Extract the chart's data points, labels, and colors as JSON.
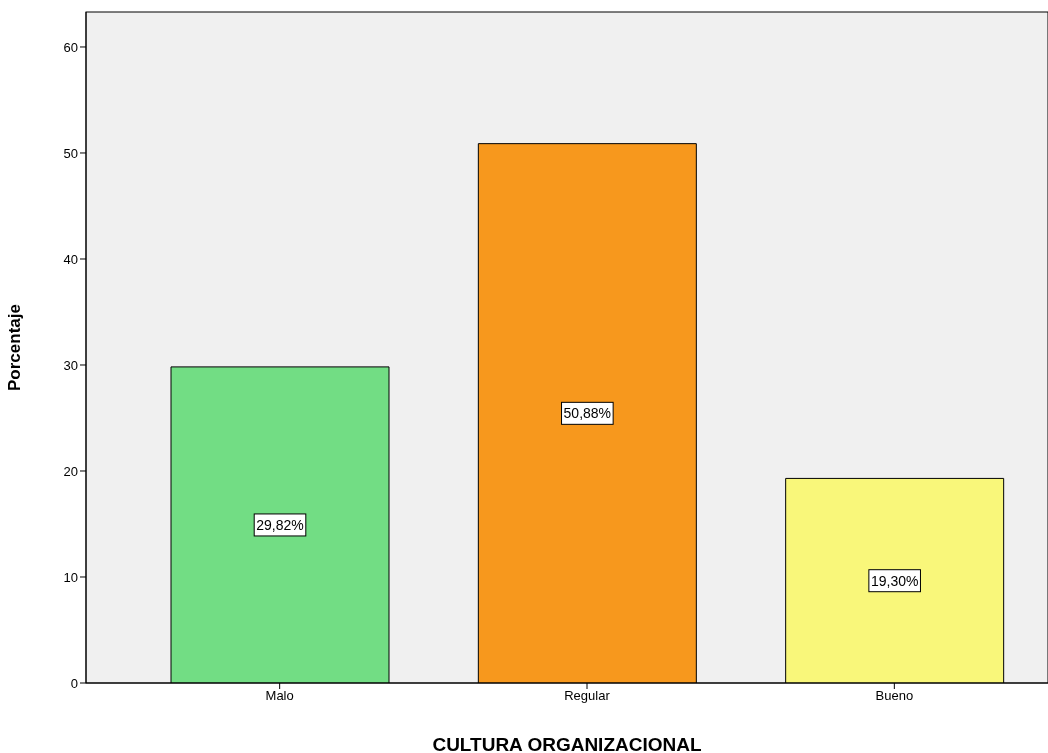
{
  "chart_data": {
    "type": "bar",
    "xlabel": "CULTURA ORGANIZACIONAL",
    "ylabel": "Porcentaje",
    "categories": [
      "Malo",
      "Regular",
      "Bueno"
    ],
    "values": [
      29.82,
      50.88,
      19.3
    ],
    "colors": [
      "#72dd84",
      "#f7981d",
      "#f9f77a"
    ],
    "value_labels": [
      "29,82%",
      "50,88%",
      "19,30%"
    ],
    "ylim": [
      0,
      63.3
    ],
    "yticks": [
      0,
      10,
      20,
      30,
      40,
      50,
      60
    ]
  }
}
